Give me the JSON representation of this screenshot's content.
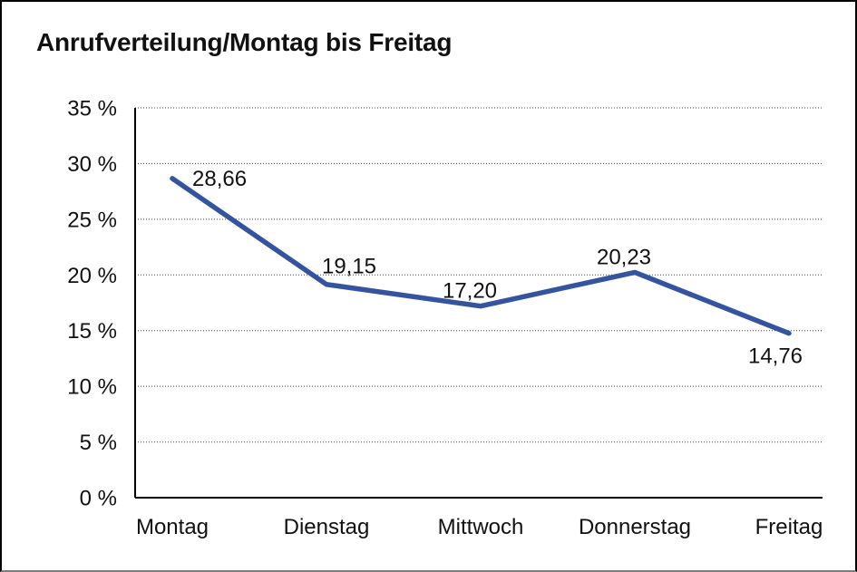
{
  "chart_data": {
    "type": "line",
    "title": "Anrufverteilung/Montag bis Freitag",
    "categories": [
      "Montag",
      "Dienstag",
      "Mittwoch",
      "Donnerstag",
      "Freitag"
    ],
    "values": [
      28.66,
      19.15,
      17.2,
      20.23,
      14.76
    ],
    "value_labels": [
      "28,66",
      "19,15",
      "17,20",
      "20,23",
      "14,76"
    ],
    "series": [
      {
        "name": "Anrufverteilung",
        "values": [
          28.66,
          19.15,
          17.2,
          20.23,
          14.76
        ]
      }
    ],
    "y_ticks": [
      {
        "value": 0,
        "label": "0 %"
      },
      {
        "value": 5,
        "label": "5 %"
      },
      {
        "value": 10,
        "label": "10 %"
      },
      {
        "value": 15,
        "label": "15 %"
      },
      {
        "value": 20,
        "label": "20 %"
      },
      {
        "value": 25,
        "label": "25 %"
      },
      {
        "value": 30,
        "label": "30 %"
      },
      {
        "value": 35,
        "label": "35 %"
      }
    ],
    "ylim": [
      0,
      35
    ],
    "xlabel": "",
    "ylabel": "",
    "grid": "horizontal-dotted",
    "legend": "none",
    "colors": {
      "series_line": "#34549F",
      "axis": "#000000",
      "gridline": "#444444",
      "text": "#111111",
      "background": "#ffffff"
    }
  }
}
